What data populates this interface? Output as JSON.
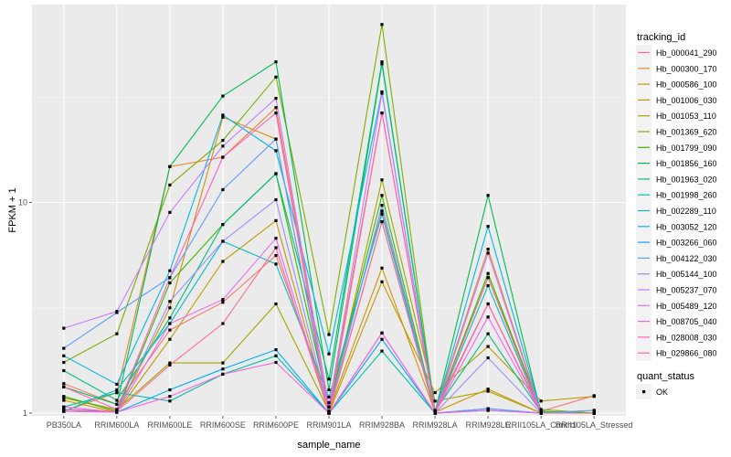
{
  "chart_data": {
    "type": "line",
    "title": "",
    "xlabel": "sample_name",
    "ylabel": "FPKM + 1",
    "yscale": "log10",
    "ylim": [
      0.97,
      87
    ],
    "yticks": [
      1,
      10
    ],
    "ytick_labels": [
      "1",
      "10"
    ],
    "grid": true,
    "legend_position": "right",
    "categories": [
      "PB350LA",
      "RRIM600LA",
      "RRIM600LE",
      "RRIM600SE",
      "RRIM600PE",
      "RRIM901LA",
      "RRIM928BA",
      "RRIM928LA",
      "RRIM928LE",
      "RRII105LA_Control",
      "RRII105LA_Stressed"
    ],
    "legend_title": "tracking_id",
    "shape_legend_title": "quant_status",
    "shape_legend_entries": [
      "OK"
    ],
    "series": [
      {
        "name": "Hb_000041_290",
        "color": "#F8766D",
        "values": [
          1.38,
          1.1,
          2.48,
          3.36,
          5.6,
          1.12,
          9.1,
          1.03,
          3.3,
          1.02,
          1.21
        ]
      },
      {
        "name": "Hb_000300_170",
        "color": "#EA8331",
        "values": [
          1.02,
          1.25,
          14.8,
          16.4,
          28.2,
          1.07,
          26.6,
          1.02,
          6.0,
          1.01,
          1.0
        ]
      },
      {
        "name": "Hb_000586_100",
        "color": "#D89000",
        "values": [
          1.15,
          1.01,
          3.16,
          25.4,
          20.0,
          1.02,
          4.88,
          1.01,
          1.3,
          1.0,
          1.0
        ]
      },
      {
        "name": "Hb_001006_030",
        "color": "#C09B00",
        "values": [
          1.04,
          1.01,
          2.24,
          5.25,
          8.2,
          1.0,
          4.2,
          1.25,
          2.07,
          1.14,
          1.2
        ]
      },
      {
        "name": "Hb_001053_110",
        "color": "#A3A500",
        "values": [
          1.18,
          1.04,
          1.73,
          1.73,
          3.3,
          1.02,
          12.8,
          1.14,
          1.27,
          1.0,
          1.03
        ]
      },
      {
        "name": "Hb_001369_620",
        "color": "#7CAE00",
        "values": [
          1.74,
          2.38,
          12.1,
          19.7,
          39.4,
          2.36,
          70.0,
          1.02,
          4.4,
          1.04,
          1.0
        ]
      },
      {
        "name": "Hb_001799_090",
        "color": "#39B600",
        "values": [
          1.2,
          1.02,
          4.15,
          7.86,
          13.7,
          1.07,
          10.8,
          1.01,
          4.6,
          1.02,
          1.0
        ]
      },
      {
        "name": "Hb_001856_160",
        "color": "#00BB4E",
        "values": [
          1.33,
          1.1,
          14.8,
          32.0,
          46.5,
          1.29,
          45.5,
          1.01,
          10.8,
          1.0,
          1.0
        ]
      },
      {
        "name": "Hb_001963_020",
        "color": "#00BF7D",
        "values": [
          1.59,
          1.15,
          2.83,
          7.86,
          13.7,
          1.45,
          46.5,
          1.02,
          2.38,
          1.01,
          1.0
        ]
      },
      {
        "name": "Hb_001998_260",
        "color": "#00C1A3",
        "values": [
          1.07,
          1.25,
          1.14,
          1.53,
          1.87,
          1.0,
          1.97,
          1.0,
          1.03,
          1.0,
          1.0
        ]
      },
      {
        "name": "Hb_002289_110",
        "color": "#00BFC4",
        "values": [
          1.02,
          1.29,
          2.66,
          6.54,
          5.1,
          1.19,
          8.8,
          1.0,
          4.03,
          1.0,
          1.0
        ]
      },
      {
        "name": "Hb_003052_120",
        "color": "#00B8E7",
        "values": [
          1.87,
          1.37,
          4.74,
          26.0,
          17.6,
          1.91,
          33.5,
          1.0,
          7.7,
          1.01,
          1.0
        ]
      },
      {
        "name": "Hb_003266_060",
        "color": "#00A9FF",
        "values": [
          1.04,
          1.01,
          1.29,
          1.62,
          2.0,
          1.0,
          2.24,
          1.0,
          1.05,
          1.0,
          1.0
        ]
      },
      {
        "name": "Hb_004122_030",
        "color": "#619CFF",
        "values": [
          2.03,
          3.0,
          4.4,
          11.5,
          20.0,
          1.02,
          9.7,
          1.0,
          1.05,
          1.0,
          1.03
        ]
      },
      {
        "name": "Hb_005144_100",
        "color": "#9590FF",
        "values": [
          1.02,
          1.01,
          3.39,
          6.54,
          10.3,
          1.02,
          8.1,
          1.0,
          1.83,
          1.0,
          1.0
        ]
      },
      {
        "name": "Hb_005237_070",
        "color": "#C77CFF",
        "values": [
          2.53,
          3.04,
          8.97,
          18.5,
          31.2,
          1.07,
          33.0,
          1.0,
          5.75,
          1.0,
          1.0
        ]
      },
      {
        "name": "Hb_005489_120",
        "color": "#E76BF3",
        "values": [
          1.07,
          1.01,
          2.66,
          3.46,
          6.76,
          1.0,
          2.4,
          1.0,
          2.86,
          1.0,
          1.0
        ]
      },
      {
        "name": "Hb_008705_040",
        "color": "#FA62DB",
        "values": [
          1.02,
          1.01,
          1.2,
          1.53,
          1.74,
          1.0,
          2.4,
          1.0,
          1.03,
          1.0,
          1.0
        ]
      },
      {
        "name": "Hb_028008_030",
        "color": "#FF62BC",
        "values": [
          1.33,
          1.04,
          4.4,
          16.4,
          26.6,
          1.0,
          26.6,
          1.0,
          3.3,
          1.0,
          1.0
        ]
      },
      {
        "name": "Hb_029866_080",
        "color": "#FF6C91",
        "values": [
          1.04,
          1.02,
          1.69,
          2.66,
          6.1,
          1.0,
          8.1,
          1.0,
          4.4,
          1.0,
          1.0
        ]
      }
    ]
  }
}
